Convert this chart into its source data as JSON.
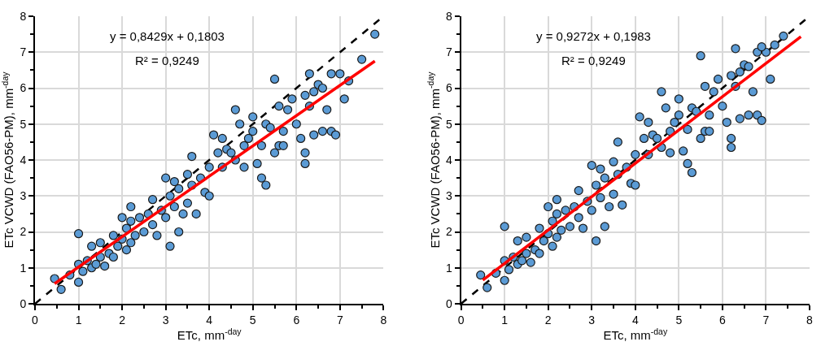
{
  "chart_data": [
    {
      "type": "scatter",
      "xlabel": "ETc, mm$^{-day}$",
      "ylabel": "ETc VCWD (FAO56-PM), mm$^{-day}$",
      "annotations": [
        "y = 0,8429x + 0,1803",
        "R² = 0,9249"
      ],
      "xlim": [
        0,
        8
      ],
      "ylim": [
        0,
        8
      ],
      "xticks": [
        0,
        {
          "value": 0.5,
          "label": null
        },
        1,
        {
          "value": 1.5,
          "label": null
        },
        2,
        {
          "value": 2.5,
          "label": null
        },
        3,
        {
          "value": 3.5,
          "label": null
        },
        4,
        {
          "value": 4.5,
          "label": null
        },
        5,
        {
          "value": 5.5,
          "label": null
        },
        6,
        {
          "value": 6.5,
          "label": null
        },
        7,
        {
          "value": 7.5,
          "label": null
        },
        8
      ],
      "yticks": [
        0,
        {
          "value": 0.5,
          "label": null
        },
        1,
        {
          "value": 1.5,
          "label": null
        },
        2,
        {
          "value": 2.5,
          "label": null
        },
        3,
        {
          "value": 3.5,
          "label": null
        },
        4,
        {
          "value": 4.5,
          "label": null
        },
        5,
        {
          "value": 5.5,
          "label": null
        },
        6,
        {
          "value": 6.5,
          "label": null
        },
        7,
        {
          "value": 7.5,
          "label": null
        },
        8
      ],
      "grid": true,
      "series": [
        {
          "type": "line",
          "color": "#000000",
          "line_style": "dashed",
          "marker": "none",
          "x": [
            0,
            8
          ],
          "values": [
            0,
            8
          ]
        },
        {
          "type": "scatter",
          "color": "#5b9bd5",
          "marker": "circle",
          "x": [
            0.45,
            0.6,
            0.8,
            1.0,
            1.0,
            1.0,
            1.1,
            1.2,
            1.3,
            1.3,
            1.4,
            1.5,
            1.5,
            1.6,
            1.7,
            1.8,
            1.8,
            1.9,
            2.0,
            2.0,
            2.1,
            2.1,
            2.2,
            2.2,
            2.2,
            2.3,
            2.4,
            2.5,
            2.6,
            2.7,
            2.7,
            2.8,
            2.9,
            3.0,
            3.0,
            3.1,
            3.1,
            3.2,
            3.2,
            3.3,
            3.3,
            3.4,
            3.5,
            3.5,
            3.6,
            3.6,
            3.7,
            3.8,
            3.9,
            4.0,
            4.0,
            4.1,
            4.2,
            4.3,
            4.3,
            4.4,
            4.5,
            4.6,
            4.6,
            4.7,
            4.8,
            4.8,
            4.9,
            5.0,
            5.0,
            5.1,
            5.2,
            5.2,
            5.3,
            5.3,
            5.4,
            5.5,
            5.5,
            5.6,
            5.6,
            5.7,
            5.7,
            5.8,
            5.9,
            6.0,
            6.1,
            6.2,
            6.2,
            6.2,
            6.3,
            6.3,
            6.4,
            6.4,
            6.5,
            6.6,
            6.6,
            6.7,
            6.8,
            6.8,
            6.9,
            7.0,
            7.1,
            7.2,
            7.5,
            7.8
          ],
          "values": [
            0.7,
            0.4,
            0.8,
            0.6,
            1.95,
            1.1,
            0.9,
            1.2,
            1.6,
            1.0,
            1.1,
            1.3,
            1.7,
            1.05,
            1.4,
            1.9,
            1.3,
            1.6,
            1.8,
            2.4,
            1.5,
            2.1,
            1.7,
            2.3,
            2.7,
            1.9,
            2.4,
            2.0,
            2.5,
            2.2,
            2.9,
            1.9,
            2.6,
            3.5,
            2.4,
            1.6,
            3.0,
            2.7,
            3.4,
            2.0,
            3.2,
            2.5,
            3.6,
            2.8,
            4.1,
            3.3,
            2.5,
            3.5,
            3.1,
            3.8,
            3.0,
            4.7,
            4.2,
            4.6,
            3.8,
            4.3,
            4.2,
            4.0,
            5.4,
            5.0,
            4.4,
            3.8,
            4.6,
            5.2,
            4.8,
            3.9,
            3.5,
            4.4,
            3.3,
            5.0,
            4.9,
            6.25,
            4.2,
            5.5,
            4.4,
            4.8,
            4.4,
            5.4,
            5.7,
            5.0,
            4.6,
            4.2,
            3.9,
            5.8,
            6.4,
            5.5,
            5.9,
            4.7,
            6.1,
            4.8,
            6.0,
            5.4,
            4.8,
            6.4,
            4.7,
            6.4,
            5.7,
            6.2,
            6.8,
            7.5
          ]
        },
        {
          "type": "line",
          "color": "#ff0000",
          "line_style": "solid",
          "marker": "none",
          "x": [
            0.45,
            7.8
          ],
          "values": [
            0.56,
            6.75
          ]
        }
      ]
    },
    {
      "type": "scatter",
      "xlabel": "ETc, mm$^{-day}$",
      "ylabel": "ETc VCWD (FAO56-PM), mm$^{-day}$",
      "annotations": [
        "y = 0,9272x + 0,1983",
        "R² = 0,9249"
      ],
      "xlim": [
        0,
        8
      ],
      "ylim": [
        0,
        8
      ],
      "xticks": [
        0,
        {
          "value": 0.5,
          "label": null
        },
        1,
        {
          "value": 1.5,
          "label": null
        },
        2,
        {
          "value": 2.5,
          "label": null
        },
        3,
        {
          "value": 3.5,
          "label": null
        },
        4,
        {
          "value": 4.5,
          "label": null
        },
        5,
        {
          "value": 5.5,
          "label": null
        },
        6,
        {
          "value": 6.5,
          "label": null
        },
        7,
        {
          "value": 7.5,
          "label": null
        },
        8
      ],
      "yticks": [
        0,
        {
          "value": 0.5,
          "label": null
        },
        1,
        {
          "value": 1.5,
          "label": null
        },
        2,
        {
          "value": 2.5,
          "label": null
        },
        3,
        {
          "value": 3.5,
          "label": null
        },
        4,
        {
          "value": 4.5,
          "label": null
        },
        5,
        {
          "value": 5.5,
          "label": null
        },
        6,
        {
          "value": 6.5,
          "label": null
        },
        7,
        {
          "value": 7.5,
          "label": null
        },
        8
      ],
      "grid": true,
      "series": [
        {
          "type": "line",
          "color": "#000000",
          "line_style": "dashed",
          "marker": "none",
          "x": [
            0,
            8
          ],
          "values": [
            0,
            8
          ]
        },
        {
          "type": "scatter",
          "color": "#5b9bd5",
          "marker": "circle",
          "x": [
            0.45,
            0.6,
            0.8,
            1.0,
            1.0,
            1.0,
            1.1,
            1.2,
            1.3,
            1.3,
            1.4,
            1.5,
            1.5,
            1.6,
            1.7,
            1.8,
            1.8,
            1.9,
            2.0,
            2.0,
            2.1,
            2.1,
            2.2,
            2.2,
            2.2,
            2.3,
            2.4,
            2.5,
            2.6,
            2.7,
            2.7,
            2.8,
            2.9,
            3.0,
            3.0,
            3.1,
            3.1,
            3.2,
            3.2,
            3.3,
            3.3,
            3.4,
            3.5,
            3.5,
            3.6,
            3.6,
            3.7,
            3.8,
            3.9,
            4.0,
            4.0,
            4.1,
            4.2,
            4.3,
            4.3,
            4.4,
            4.5,
            4.6,
            4.6,
            4.7,
            4.8,
            4.8,
            4.9,
            5.0,
            5.0,
            5.1,
            5.2,
            5.2,
            5.3,
            5.3,
            5.4,
            5.5,
            5.5,
            5.6,
            5.6,
            5.7,
            5.7,
            5.8,
            5.9,
            6.0,
            6.1,
            6.2,
            6.2,
            6.2,
            6.3,
            6.3,
            6.4,
            6.4,
            6.5,
            6.6,
            6.6,
            6.7,
            6.8,
            6.8,
            6.9,
            7.0,
            7.1,
            6.9,
            7.2,
            7.4
          ],
          "values": [
            0.8,
            0.45,
            0.85,
            0.65,
            2.15,
            1.2,
            0.95,
            1.3,
            1.75,
            1.1,
            1.2,
            1.4,
            1.85,
            1.15,
            1.5,
            2.1,
            1.4,
            1.75,
            1.95,
            2.7,
            1.6,
            2.3,
            1.85,
            2.5,
            2.9,
            2.05,
            2.6,
            2.15,
            2.7,
            2.4,
            3.15,
            2.1,
            2.85,
            3.85,
            2.6,
            1.75,
            3.3,
            2.95,
            3.75,
            2.15,
            3.5,
            2.7,
            3.95,
            3.05,
            4.5,
            3.6,
            2.75,
            3.8,
            3.35,
            4.15,
            3.3,
            5.2,
            4.6,
            5.05,
            4.15,
            4.7,
            4.6,
            4.35,
            5.9,
            5.45,
            4.8,
            4.2,
            5.05,
            5.7,
            5.25,
            4.25,
            3.9,
            4.85,
            3.65,
            5.45,
            5.35,
            6.9,
            4.6,
            6.05,
            4.8,
            5.25,
            4.8,
            5.9,
            6.25,
            5.5,
            5.05,
            4.6,
            4.35,
            6.35,
            7.1,
            6.05,
            6.45,
            5.15,
            6.65,
            5.25,
            6.6,
            5.9,
            5.25,
            7.0,
            5.1,
            7.0,
            6.25,
            7.15,
            7.2,
            7.45
          ]
        },
        {
          "type": "line",
          "color": "#ff0000",
          "line_style": "solid",
          "marker": "none",
          "x": [
            0.5,
            7.8
          ],
          "values": [
            0.66,
            7.43
          ]
        }
      ]
    }
  ]
}
